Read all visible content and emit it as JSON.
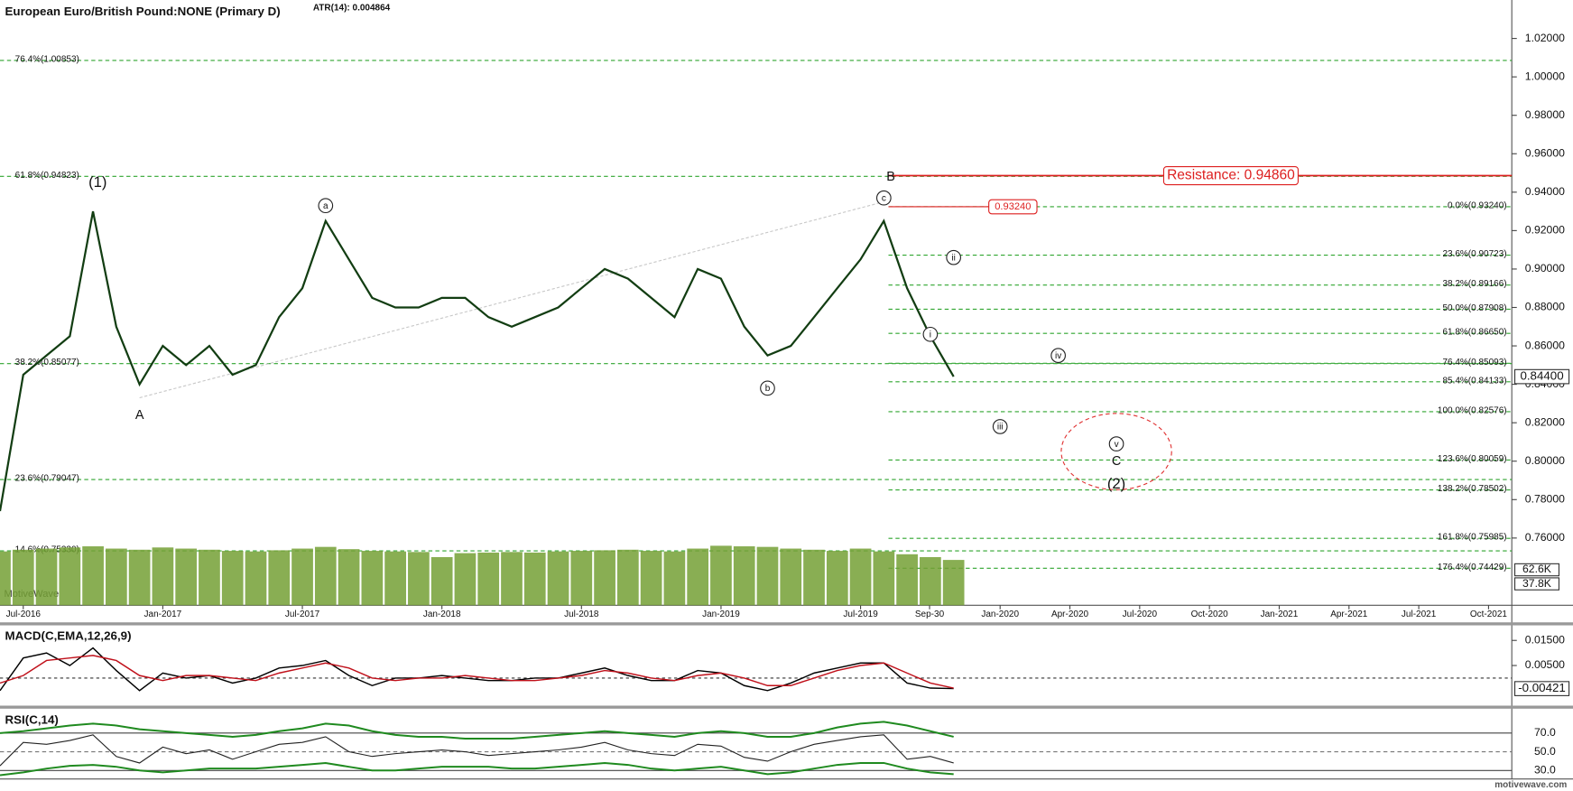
{
  "header": {
    "title": "European Euro/British Pound:NONE (Primary D)",
    "atr": "ATR(14): 0.004864",
    "watermark": "MotiveWave",
    "footer": "motivewave.com"
  },
  "chart_data": [
    {
      "type": "line",
      "color": "#123d12",
      "level_color": "#2fa52f",
      "resistance_color": "#dd1f1f",
      "x": [
        "2016-06",
        "2016-07",
        "2016-08",
        "2016-09",
        "2016-10",
        "2016-11",
        "2016-12",
        "2017-01",
        "2017-02",
        "2017-03",
        "2017-04",
        "2017-05",
        "2017-06",
        "2017-07",
        "2017-08",
        "2017-09",
        "2017-10",
        "2017-11",
        "2017-12",
        "2018-01",
        "2018-02",
        "2018-03",
        "2018-04",
        "2018-05",
        "2018-06",
        "2018-07",
        "2018-08",
        "2018-09",
        "2018-10",
        "2018-11",
        "2018-12",
        "2019-01",
        "2019-02",
        "2019-03",
        "2019-04",
        "2019-05",
        "2019-06",
        "2019-07",
        "2019-08",
        "2019-09",
        "2019-10",
        "2019-11"
      ],
      "values": [
        0.774,
        0.845,
        0.855,
        0.865,
        0.93,
        0.87,
        0.84,
        0.86,
        0.85,
        0.86,
        0.845,
        0.85,
        0.875,
        0.89,
        0.925,
        0.905,
        0.885,
        0.88,
        0.88,
        0.885,
        0.885,
        0.875,
        0.87,
        0.875,
        0.88,
        0.89,
        0.9,
        0.895,
        0.885,
        0.875,
        0.9,
        0.895,
        0.87,
        0.855,
        0.86,
        0.875,
        0.89,
        0.905,
        0.925,
        0.89,
        0.865,
        0.844
      ],
      "xlim": [
        "2016-06",
        "2021-11"
      ],
      "xticks": [
        {
          "value": "2016-07",
          "label": "Jul-2016"
        },
        {
          "value": "2017-01",
          "label": "Jan-2017"
        },
        {
          "value": "2017-07",
          "label": "Jul-2017"
        },
        {
          "value": "2018-01",
          "label": "Jan-2018"
        },
        {
          "value": "2018-07",
          "label": "Jul-2018"
        },
        {
          "value": "2019-01",
          "label": "Jan-2019"
        },
        {
          "value": "2019-07",
          "label": "Jul-2019"
        },
        {
          "value": "2019-09-30",
          "label": "Sep-30"
        },
        {
          "value": "2020-01",
          "label": "Jan-2020"
        },
        {
          "value": "2020-04",
          "label": "Apr-2020"
        },
        {
          "value": "2020-07",
          "label": "Jul-2020"
        },
        {
          "value": "2020-10",
          "label": "Oct-2020"
        },
        {
          "value": "2021-01",
          "label": "Jan-2021"
        },
        {
          "value": "2021-04",
          "label": "Apr-2021"
        },
        {
          "value": "2021-07",
          "label": "Jul-2021"
        },
        {
          "value": "2021-10",
          "label": "Oct-2021"
        }
      ],
      "ylim": [
        0.725,
        1.04
      ],
      "yticks": [
        {
          "value": 0.76,
          "label": "0.76000"
        },
        {
          "value": 0.78,
          "label": "0.78000"
        },
        {
          "value": 0.8,
          "label": "0.80000"
        },
        {
          "value": 0.82,
          "label": "0.82000"
        },
        {
          "value": 0.84,
          "label": "0.84000"
        },
        {
          "value": 0.86,
          "label": "0.86000"
        },
        {
          "value": 0.88,
          "label": "0.88000"
        },
        {
          "value": 0.9,
          "label": "0.90000"
        },
        {
          "value": 0.92,
          "label": "0.92000"
        },
        {
          "value": 0.94,
          "label": "0.94000"
        },
        {
          "value": 0.96,
          "label": "0.96000"
        },
        {
          "value": 0.98,
          "label": "0.98000"
        },
        {
          "value": 1.0,
          "label": "1.00000"
        },
        {
          "value": 1.02,
          "label": "1.02000"
        }
      ],
      "levels": [
        {
          "label": "76.4%(1.00853)",
          "value": 1.00853
        },
        {
          "label": "61.8%(0.94823)",
          "value": 0.94823
        },
        {
          "label": "38.2%(0.85077)",
          "value": 0.85077
        },
        {
          "label": "23.6%(0.79047)",
          "value": 0.79047
        },
        {
          "label": "14.6%(0.75330)",
          "value": 0.7533
        }
      ],
      "right_levels": [
        {
          "label": "0.0%(0.93240)",
          "value": 0.9324
        },
        {
          "label": "23.6%(0.90723)",
          "value": 0.90723
        },
        {
          "label": "38.2%(0.89166)",
          "value": 0.89166
        },
        {
          "label": "50.0%(0.87908)",
          "value": 0.87908
        },
        {
          "label": "61.8%(0.86650)",
          "value": 0.8665
        },
        {
          "label": "76.4%(0.85093)",
          "value": 0.85093
        },
        {
          "label": "85.4%(0.84133)",
          "value": 0.84133
        },
        {
          "label": "100.0%(0.82576)",
          "value": 0.82576
        },
        {
          "label": "123.6%(0.80059)",
          "value": 0.80059
        },
        {
          "label": "138.2%(0.78502)",
          "value": 0.78502
        },
        {
          "label": "161.8%(0.75985)",
          "value": 0.75985
        },
        {
          "label": "176.4%(0.74429)",
          "value": 0.74429
        }
      ],
      "resistance": {
        "label": "Resistance: 0.94860",
        "value": 0.9486
      },
      "target": {
        "label": "0.93240",
        "value": 0.9324
      },
      "last": {
        "label": "0.84400",
        "value": 0.844
      },
      "wave_labels": [
        {
          "text": "(1)",
          "circled": false
        },
        {
          "text": "A",
          "circled": false
        },
        {
          "text": "a",
          "circled": true
        },
        {
          "text": "b",
          "circled": true
        },
        {
          "text": "B",
          "circled": false
        },
        {
          "text": "c",
          "circled": true
        },
        {
          "text": "i",
          "circled": true
        },
        {
          "text": "ii",
          "circled": true
        },
        {
          "text": "iii",
          "circled": true
        },
        {
          "text": "iv",
          "circled": true
        },
        {
          "text": "v",
          "circled": true
        },
        {
          "text": "C",
          "circled": false
        },
        {
          "text": "(2)",
          "circled": false
        }
      ]
    },
    {
      "type": "bar",
      "color": "#74a035",
      "values": [
        95,
        98,
        100,
        102,
        104,
        100,
        98,
        102,
        100,
        98,
        96,
        95,
        97,
        100,
        103,
        99,
        96,
        95,
        94,
        85,
        92,
        93,
        94,
        93,
        95,
        96,
        97,
        98,
        96,
        95,
        100,
        105,
        104,
        103,
        100,
        98,
        96,
        100,
        95,
        90,
        85,
        80
      ],
      "ylim": [
        0,
        301
      ],
      "yticks": [
        {
          "value": 62.6,
          "label": "62.6K"
        },
        {
          "value": 37.8,
          "label": "37.8K"
        }
      ]
    },
    {
      "type": "line",
      "title": "MACD(C,EMA,12,26,9)",
      "series": [
        {
          "color": "#000000",
          "values": [
            -0.005,
            0.008,
            0.01,
            0.005,
            0.012,
            0.003,
            -0.005,
            0.002,
            0,
            0.001,
            -0.002,
            0,
            0.004,
            0.005,
            0.007,
            0.001,
            -0.003,
            0,
            0,
            0.001,
            0,
            -0.001,
            -0.001,
            0,
            0,
            0.002,
            0.004,
            0.001,
            -0.001,
            -0.001,
            0.003,
            0.002,
            -0.003,
            -0.005,
            -0.002,
            0.002,
            0.004,
            0.006,
            0.006,
            -0.002,
            -0.004,
            -0.00421
          ]
        },
        {
          "color": "#c0101a",
          "values": [
            -0.002,
            0.001,
            0.007,
            0.008,
            0.009,
            0.007,
            0.001,
            -0.001,
            0.001,
            0.001,
            0,
            -0.001,
            0.002,
            0.004,
            0.006,
            0.004,
            0,
            -0.001,
            0,
            0,
            0.001,
            0,
            -0.001,
            -0.001,
            0,
            0.001,
            0.003,
            0.002,
            0,
            -0.001,
            0.001,
            0.002,
            0,
            -0.003,
            -0.003,
            0,
            0.003,
            0.005,
            0.006,
            0.002,
            -0.002,
            -0.004
          ]
        }
      ],
      "ylim": [
        -0.011,
        0.021
      ],
      "yticks": [
        {
          "value": 0.015,
          "label": "0.01500"
        },
        {
          "value": 0.005,
          "label": "0.00500"
        }
      ],
      "last": {
        "label": "-0.00421",
        "value": -0.00421
      }
    },
    {
      "type": "line",
      "title": "RSI(C,14)",
      "series": [
        {
          "color": "#222222",
          "values": [
            35,
            60,
            58,
            62,
            68,
            45,
            38,
            55,
            48,
            52,
            42,
            50,
            58,
            60,
            66,
            50,
            45,
            48,
            50,
            52,
            50,
            46,
            48,
            50,
            52,
            55,
            60,
            52,
            48,
            46,
            58,
            56,
            44,
            40,
            50,
            58,
            62,
            66,
            68,
            42,
            45,
            38
          ]
        },
        {
          "color": "#1f8a1f",
          "values": [
            70,
            72,
            75,
            78,
            80,
            78,
            74,
            72,
            70,
            68,
            66,
            68,
            72,
            75,
            80,
            78,
            72,
            68,
            66,
            66,
            64,
            64,
            64,
            66,
            68,
            70,
            72,
            70,
            68,
            66,
            70,
            72,
            70,
            66,
            66,
            70,
            76,
            80,
            82,
            78,
            72,
            66
          ]
        },
        {
          "color": "#1f8a1f",
          "values": [
            25,
            28,
            32,
            35,
            36,
            34,
            30,
            28,
            30,
            32,
            32,
            32,
            34,
            36,
            38,
            34,
            30,
            30,
            32,
            34,
            34,
            34,
            32,
            32,
            34,
            36,
            38,
            36,
            32,
            30,
            32,
            34,
            30,
            26,
            28,
            32,
            36,
            38,
            38,
            32,
            28,
            26
          ]
        }
      ],
      "ylim": [
        21,
        96
      ],
      "yticks": [
        {
          "value": 70,
          "label": "70.0"
        },
        {
          "value": 50,
          "label": "50.0"
        },
        {
          "value": 30,
          "label": "30.0"
        }
      ]
    }
  ]
}
